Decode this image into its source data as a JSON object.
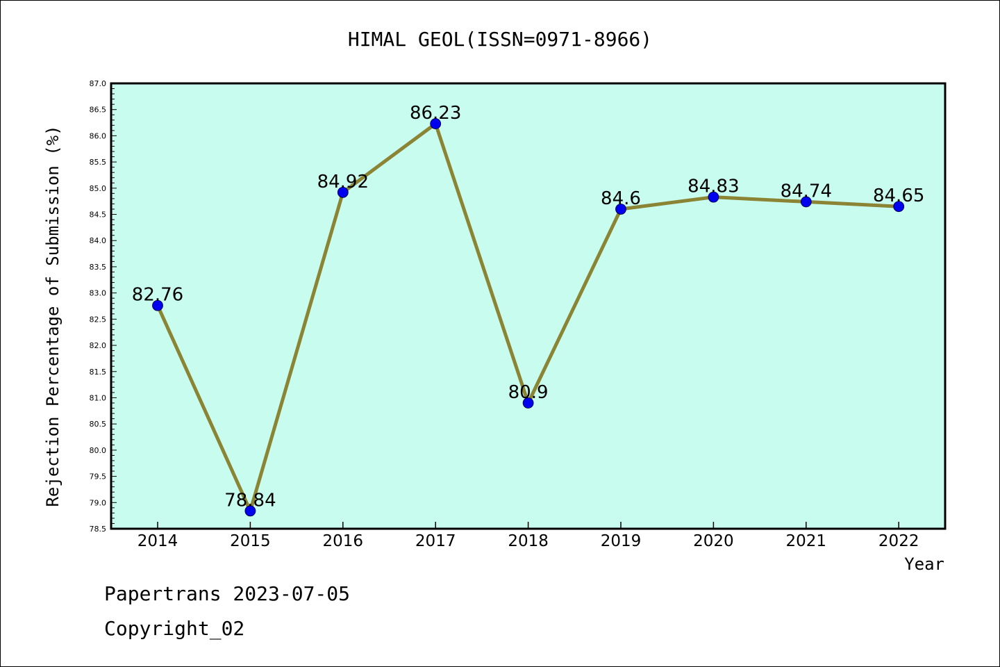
{
  "footer": {
    "line1": "Papertrans 2023-07-05",
    "line2": "Copyright_02"
  },
  "colors": {
    "plot_background": "#c8fcee",
    "line": "#8a8434",
    "marker": "#0000ee",
    "axes": "#000000"
  },
  "chart_data": {
    "type": "line",
    "title": "HIMAL GEOL(ISSN=0971-8966)",
    "xlabel": "Year",
    "ylabel": "Rejection Percentage of Submission (%)",
    "categories": [
      "2014",
      "2015",
      "2016",
      "2017",
      "2018",
      "2019",
      "2020",
      "2021",
      "2022"
    ],
    "series": [
      {
        "values": [
          82.76,
          78.84,
          84.92,
          86.23,
          80.9,
          84.6,
          84.83,
          84.74,
          84.65
        ],
        "labels": [
          "82.76",
          "78.84",
          "84.92",
          "86.23",
          "80.9",
          "84.6",
          "84.83",
          "84.74",
          "84.65"
        ]
      }
    ],
    "ylim": [
      78.5,
      87.0
    ],
    "yticks": [
      "78.5",
      "79.0",
      "79.5",
      "80.0",
      "80.5",
      "81.0",
      "81.5",
      "82.0",
      "82.5",
      "83.0",
      "83.5",
      "84.0",
      "84.5",
      "85.0",
      "85.5",
      "86.0",
      "86.5",
      "87.0"
    ],
    "grid": false,
    "legend": "none"
  }
}
